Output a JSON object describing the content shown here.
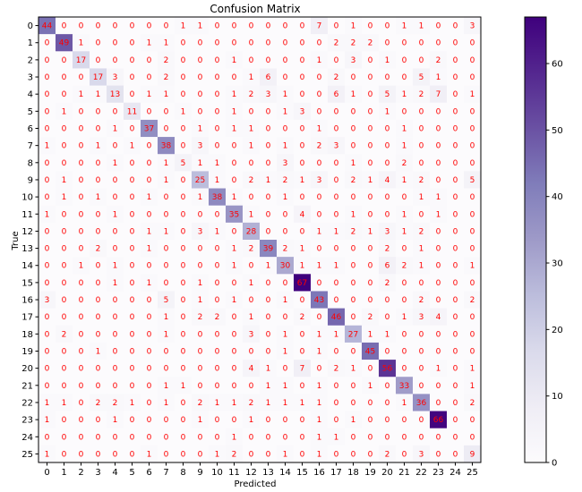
{
  "chart_data": {
    "type": "heatmap",
    "title": "Confusion Matrix",
    "xlabel": "Predicted",
    "ylabel": "True",
    "x_categories": [
      "0",
      "1",
      "2",
      "3",
      "4",
      "5",
      "6",
      "7",
      "8",
      "9",
      "10",
      "11",
      "12",
      "13",
      "14",
      "15",
      "16",
      "17",
      "18",
      "19",
      "20",
      "21",
      "22",
      "23",
      "24",
      "25"
    ],
    "y_categories": [
      "0",
      "1",
      "2",
      "3",
      "4",
      "5",
      "6",
      "7",
      "8",
      "9",
      "10",
      "11",
      "12",
      "13",
      "14",
      "15",
      "16",
      "17",
      "18",
      "19",
      "20",
      "21",
      "22",
      "23",
      "24",
      "25"
    ],
    "values": [
      [
        44,
        0,
        0,
        0,
        0,
        0,
        0,
        0,
        1,
        1,
        0,
        0,
        0,
        0,
        0,
        0,
        7,
        0,
        1,
        0,
        0,
        1,
        1,
        0,
        0,
        3
      ],
      [
        0,
        49,
        1,
        0,
        0,
        0,
        1,
        1,
        0,
        0,
        0,
        0,
        0,
        0,
        0,
        0,
        0,
        2,
        2,
        2,
        0,
        0,
        0,
        0,
        0,
        0
      ],
      [
        0,
        0,
        17,
        0,
        0,
        0,
        0,
        2,
        0,
        0,
        0,
        1,
        0,
        0,
        0,
        0,
        1,
        0,
        3,
        0,
        1,
        0,
        0,
        2,
        0,
        0
      ],
      [
        0,
        0,
        0,
        17,
        3,
        0,
        0,
        2,
        0,
        0,
        0,
        0,
        1,
        6,
        0,
        0,
        0,
        2,
        0,
        0,
        0,
        0,
        5,
        1,
        0,
        0
      ],
      [
        0,
        0,
        1,
        1,
        13,
        0,
        1,
        1,
        0,
        0,
        0,
        1,
        2,
        3,
        1,
        0,
        0,
        6,
        1,
        0,
        5,
        1,
        2,
        7,
        0,
        1
      ],
      [
        0,
        1,
        0,
        0,
        0,
        11,
        0,
        0,
        1,
        0,
        0,
        1,
        0,
        0,
        1,
        3,
        0,
        0,
        0,
        0,
        1,
        0,
        0,
        0,
        0,
        0
      ],
      [
        0,
        0,
        0,
        0,
        1,
        0,
        37,
        0,
        0,
        1,
        0,
        1,
        1,
        0,
        0,
        0,
        1,
        0,
        0,
        0,
        0,
        1,
        0,
        0,
        0,
        0
      ],
      [
        1,
        0,
        0,
        1,
        0,
        1,
        0,
        38,
        0,
        3,
        0,
        0,
        1,
        0,
        1,
        0,
        2,
        3,
        0,
        0,
        0,
        1,
        0,
        0,
        0,
        0
      ],
      [
        0,
        0,
        0,
        0,
        1,
        0,
        0,
        1,
        5,
        1,
        1,
        0,
        0,
        0,
        3,
        0,
        0,
        0,
        1,
        0,
        0,
        2,
        0,
        0,
        0,
        0
      ],
      [
        0,
        1,
        0,
        0,
        0,
        0,
        0,
        1,
        0,
        25,
        1,
        0,
        2,
        1,
        2,
        1,
        3,
        0,
        2,
        1,
        4,
        1,
        2,
        0,
        0,
        5
      ],
      [
        0,
        1,
        0,
        1,
        0,
        0,
        1,
        0,
        0,
        1,
        38,
        1,
        0,
        0,
        1,
        0,
        0,
        0,
        0,
        0,
        0,
        0,
        1,
        1,
        0,
        0
      ],
      [
        1,
        0,
        0,
        0,
        1,
        0,
        0,
        0,
        0,
        0,
        0,
        35,
        1,
        0,
        0,
        4,
        0,
        0,
        1,
        0,
        0,
        1,
        0,
        1,
        0,
        0
      ],
      [
        0,
        0,
        0,
        0,
        0,
        0,
        1,
        1,
        0,
        3,
        1,
        0,
        28,
        0,
        0,
        0,
        1,
        1,
        2,
        1,
        3,
        1,
        2,
        0,
        0,
        0
      ],
      [
        0,
        0,
        0,
        2,
        0,
        0,
        1,
        0,
        0,
        0,
        0,
        1,
        2,
        39,
        2,
        1,
        0,
        0,
        0,
        0,
        2,
        0,
        1,
        0,
        0,
        0
      ],
      [
        0,
        0,
        1,
        0,
        1,
        0,
        0,
        0,
        0,
        0,
        0,
        1,
        0,
        1,
        30,
        1,
        1,
        1,
        0,
        0,
        6,
        2,
        1,
        0,
        0,
        1
      ],
      [
        0,
        0,
        0,
        0,
        1,
        0,
        1,
        0,
        0,
        1,
        0,
        0,
        1,
        0,
        0,
        67,
        0,
        0,
        0,
        0,
        2,
        0,
        0,
        0,
        0,
        0
      ],
      [
        3,
        0,
        0,
        0,
        0,
        0,
        0,
        5,
        0,
        1,
        0,
        1,
        0,
        0,
        1,
        0,
        43,
        0,
        0,
        0,
        0,
        0,
        2,
        0,
        0,
        2
      ],
      [
        0,
        0,
        0,
        0,
        0,
        0,
        0,
        1,
        0,
        2,
        2,
        0,
        1,
        0,
        0,
        2,
        0,
        46,
        0,
        2,
        0,
        1,
        3,
        4,
        0,
        0
      ],
      [
        0,
        2,
        0,
        0,
        0,
        0,
        0,
        1,
        0,
        0,
        0,
        0,
        3,
        0,
        1,
        0,
        1,
        1,
        27,
        1,
        1,
        0,
        0,
        0,
        0,
        0
      ],
      [
        0,
        0,
        0,
        1,
        0,
        0,
        0,
        0,
        0,
        0,
        0,
        0,
        0,
        0,
        1,
        0,
        1,
        0,
        0,
        45,
        0,
        0,
        0,
        0,
        0,
        0
      ],
      [
        0,
        0,
        0,
        0,
        0,
        0,
        0,
        0,
        0,
        0,
        0,
        0,
        4,
        1,
        0,
        7,
        0,
        2,
        1,
        0,
        56,
        0,
        0,
        1,
        0,
        1
      ],
      [
        0,
        0,
        0,
        0,
        0,
        0,
        0,
        1,
        1,
        0,
        0,
        0,
        0,
        1,
        1,
        0,
        1,
        0,
        0,
        1,
        0,
        33,
        0,
        0,
        0,
        1
      ],
      [
        1,
        1,
        0,
        2,
        2,
        1,
        0,
        1,
        0,
        2,
        1,
        1,
        2,
        1,
        1,
        1,
        1,
        0,
        0,
        0,
        0,
        1,
        36,
        0,
        0,
        2
      ],
      [
        1,
        0,
        0,
        0,
        1,
        0,
        0,
        0,
        0,
        1,
        0,
        0,
        1,
        0,
        0,
        0,
        1,
        0,
        1,
        0,
        0,
        0,
        0,
        66,
        0,
        0
      ],
      [
        0,
        0,
        0,
        0,
        0,
        0,
        0,
        0,
        0,
        0,
        0,
        1,
        0,
        0,
        0,
        0,
        1,
        1,
        0,
        0,
        0,
        0,
        0,
        0,
        0,
        0
      ],
      [
        1,
        0,
        0,
        0,
        0,
        0,
        1,
        0,
        0,
        0,
        1,
        2,
        0,
        0,
        1,
        0,
        1,
        0,
        0,
        0,
        2,
        0,
        3,
        0,
        0,
        9
      ]
    ],
    "colorbar": {
      "min": 0,
      "max": 67,
      "ticks": [
        0,
        10,
        20,
        30,
        40,
        50,
        60
      ]
    },
    "colormap": {
      "name": "Purples",
      "low": "#fcfbfd",
      "high": "#3f007d"
    },
    "label_color": "#ff0000"
  }
}
